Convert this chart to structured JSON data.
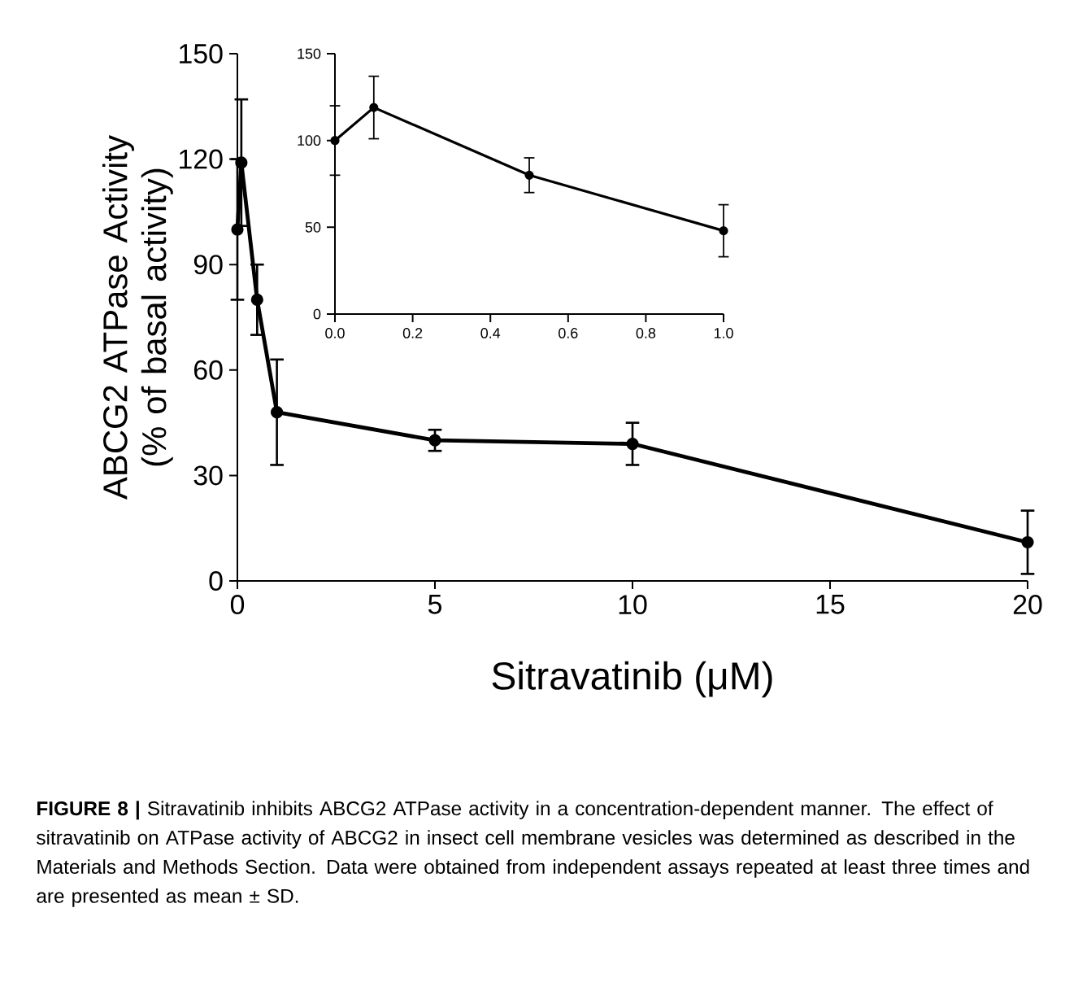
{
  "chart_data": [
    {
      "type": "line",
      "xlabel": "Sitravatinib (μM)",
      "ylabel": "ABCG2 ATPase Activity (% of basal activity)",
      "x": [
        0,
        0.1,
        0.5,
        1,
        5,
        10,
        20
      ],
      "series": [
        {
          "color": "#000000",
          "values": [
            100,
            119,
            80,
            48,
            40,
            39,
            11
          ],
          "errors": [
            20,
            18,
            10,
            15,
            3,
            6,
            9
          ]
        }
      ],
      "xlim": [
        0,
        20
      ],
      "ylim": [
        0,
        150
      ],
      "xticks": [
        0,
        5,
        10,
        15,
        20
      ],
      "yticks": [
        0,
        30,
        60,
        90,
        120,
        150
      ],
      "marker": "circle",
      "line_style": "solid",
      "annotations": [
        "**FIGURE 8 |** Sitravatinib inhibits ABCG2 ATPase activity in a concentration-dependent manner. The effect of sitravatinib on ATPase activity of ABCG2 in insect cell membrane vesicles was determined as described in the Materials and Methods Section. Data were obtained from independent assays repeated at least three times and are presented as mean ± SD."
      ]
    },
    {
      "type": "line",
      "x": [
        0,
        0.1,
        0.5,
        1
      ],
      "series": [
        {
          "color": "#000000",
          "values": [
            100,
            119,
            80,
            48
          ],
          "errors": [
            20,
            18,
            10,
            15
          ]
        }
      ],
      "xlim": [
        0,
        1
      ],
      "ylim": [
        0,
        150
      ],
      "xticks": [
        {
          "value": 0,
          "label": "0.0"
        },
        {
          "value": 0.2,
          "label": "0.2"
        },
        {
          "value": 0.4,
          "label": "0.4"
        },
        {
          "value": 0.6,
          "label": "0.6"
        },
        {
          "value": 0.8,
          "label": "0.8"
        },
        {
          "value": 1,
          "label": "1.0"
        }
      ],
      "yticks": [
        0,
        50,
        100,
        150
      ],
      "marker": "circle",
      "line_style": "solid"
    }
  ]
}
